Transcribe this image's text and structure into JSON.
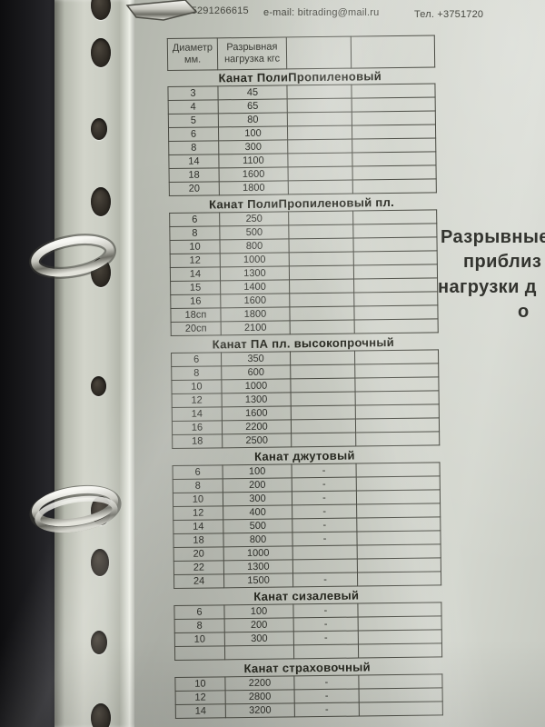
{
  "page_header": {
    "phone_left": "Тел. +375291266615",
    "email": "e-mail: bitrading@mail.ru",
    "phone_right": "Тел. +3751720"
  },
  "table_header": {
    "diameter_line1": "Диаметр",
    "diameter_line2": "мм.",
    "load_line1": "Разрывная",
    "load_line2": "нагрузка кгс"
  },
  "sections": [
    {
      "title": "Канат ПолиПропиленовый",
      "rows": [
        [
          "3",
          "45",
          "",
          ""
        ],
        [
          "4",
          "65",
          "",
          ""
        ],
        [
          "5",
          "80",
          "",
          ""
        ],
        [
          "6",
          "100",
          "",
          ""
        ],
        [
          "8",
          "300",
          "",
          ""
        ],
        [
          "14",
          "1100",
          "",
          ""
        ],
        [
          "18",
          "1600",
          "",
          ""
        ],
        [
          "20",
          "1800",
          "",
          ""
        ]
      ]
    },
    {
      "title": "Канат ПолиПропиленовый пл.",
      "rows": [
        [
          "6",
          "250",
          "",
          ""
        ],
        [
          "8",
          "500",
          "",
          ""
        ],
        [
          "10",
          "800",
          "",
          ""
        ],
        [
          "12",
          "1000",
          "",
          ""
        ],
        [
          "14",
          "1300",
          "",
          ""
        ],
        [
          "15",
          "1400",
          "",
          ""
        ],
        [
          "16",
          "1600",
          "",
          ""
        ],
        [
          "18сп",
          "1800",
          "",
          ""
        ],
        [
          "20сп",
          "2100",
          "",
          ""
        ]
      ]
    },
    {
      "title": "Канат ПА пл. высокопрочный",
      "rows": [
        [
          "6",
          "350",
          "",
          ""
        ],
        [
          "8",
          "600",
          "",
          ""
        ],
        [
          "10",
          "1000",
          "",
          ""
        ],
        [
          "12",
          "1300",
          "",
          ""
        ],
        [
          "14",
          "1600",
          "",
          ""
        ],
        [
          "16",
          "2200",
          "",
          ""
        ],
        [
          "18",
          "2500",
          "",
          ""
        ]
      ]
    },
    {
      "title": "Канат  джутовый",
      "rows": [
        [
          "6",
          "100",
          "-",
          ""
        ],
        [
          "8",
          "200",
          "-",
          ""
        ],
        [
          "10",
          "300",
          "-",
          ""
        ],
        [
          "12",
          "400",
          "-",
          ""
        ],
        [
          "14",
          "500",
          "-",
          ""
        ],
        [
          "18",
          "800",
          "-",
          ""
        ],
        [
          "20",
          "1000",
          "",
          ""
        ],
        [
          "22",
          "1300",
          "",
          ""
        ],
        [
          "24",
          "1500",
          "-",
          ""
        ]
      ]
    },
    {
      "title": "Канат сизалевый",
      "rows": [
        [
          "6",
          "100",
          "-",
          ""
        ],
        [
          "8",
          "200",
          "-",
          ""
        ],
        [
          "10",
          "300",
          "-",
          ""
        ],
        [
          "",
          "",
          "",
          ""
        ]
      ]
    },
    {
      "title": "Канат страховочный",
      "rows": [
        [
          "10",
          "2200",
          "-",
          ""
        ],
        [
          "12",
          "2800",
          "-",
          ""
        ],
        [
          "14",
          "3200",
          "-",
          ""
        ]
      ]
    }
  ],
  "side_note": {
    "lines": [
      "Разрывные",
      "приблиз",
      "нагрузки д",
      "о"
    ]
  },
  "colors": {
    "paper": "#cdd0c7",
    "binder_cover": "#141416",
    "table_line": "#4a4b43",
    "text": "#2e2f2a"
  }
}
